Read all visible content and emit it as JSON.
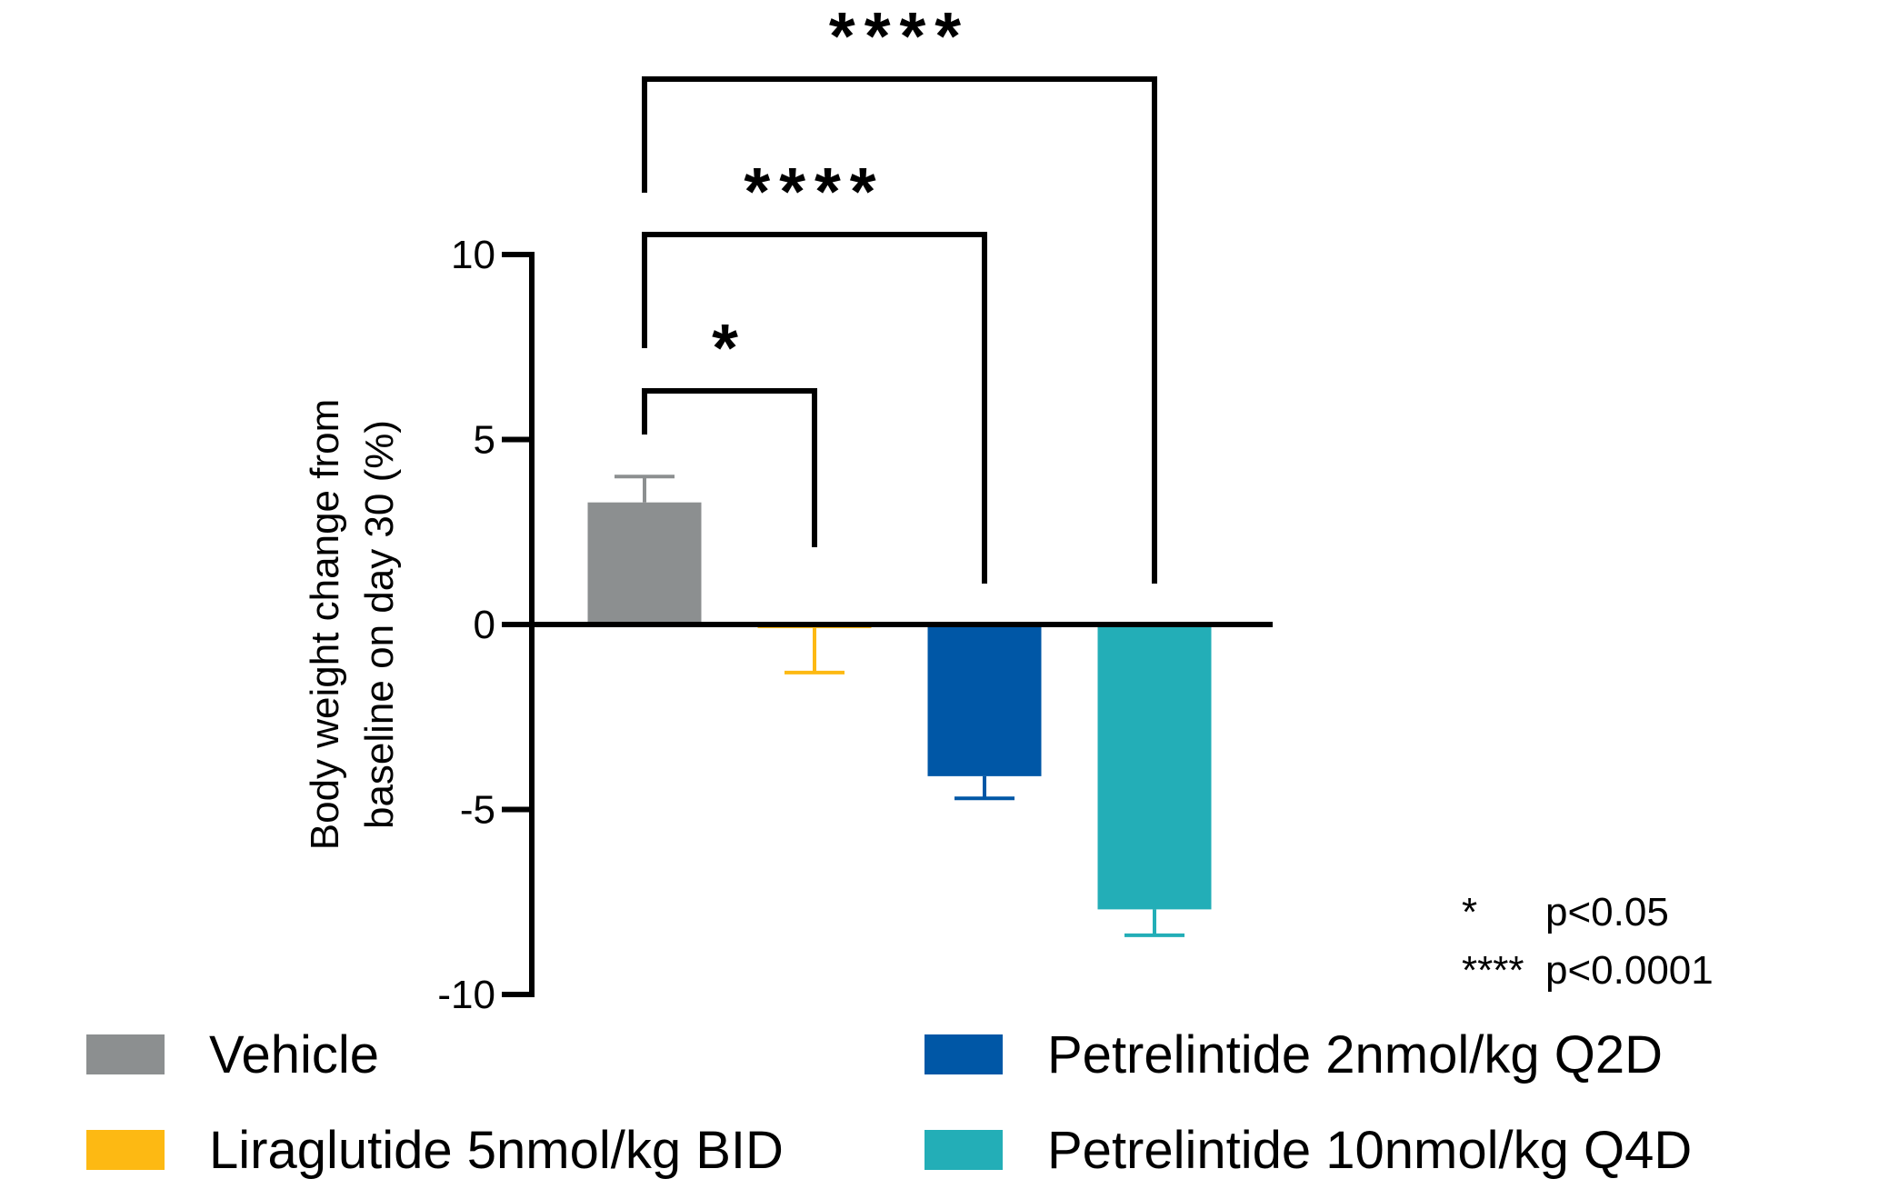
{
  "chart_data": {
    "type": "bar",
    "title": "",
    "xlabel": "",
    "ylabel_line1": "Body weight change from",
    "ylabel_line2": "baseline on day 30 (%)",
    "ylim": [
      -10,
      10
    ],
    "yticks": [
      10,
      5,
      0,
      -5,
      -10
    ],
    "ytick_labels": [
      "10",
      "5",
      "0",
      "-5",
      "-10"
    ],
    "categories": [
      "Vehicle",
      "Liraglutide 5nmol/kg BID",
      "Petrelintide 2nmol/kg Q2D",
      "Petrelintide 10nmol/kg Q4D"
    ],
    "values": [
      3.3,
      -0.1,
      -4.1,
      -7.7
    ],
    "errors": [
      0.7,
      1.2,
      0.6,
      0.7
    ],
    "colors": [
      "#8c8f90",
      "#fdb913",
      "#0057a6",
      "#23aeb7"
    ],
    "significance": [
      {
        "from": 0,
        "to": 1,
        "label": "*"
      },
      {
        "from": 0,
        "to": 2,
        "label": "****"
      },
      {
        "from": 0,
        "to": 3,
        "label": "****"
      }
    ],
    "pvalue_key": [
      {
        "symbol": "*",
        "text": "p<0.05"
      },
      {
        "symbol": "****",
        "text": "p<0.0001"
      }
    ],
    "legend_placement": "bottom",
    "grid": false
  }
}
